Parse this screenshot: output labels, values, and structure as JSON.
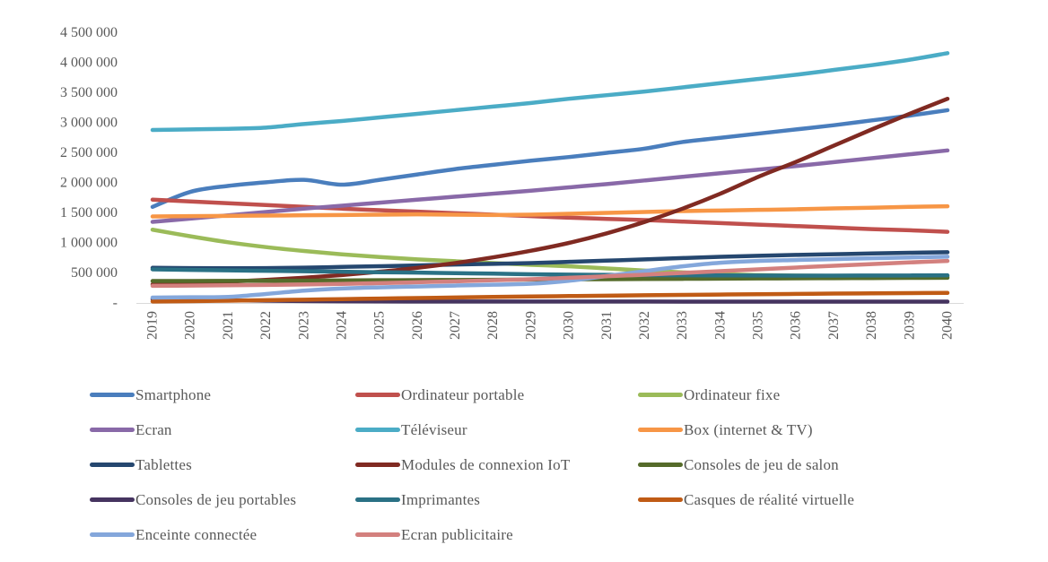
{
  "chart_data": {
    "type": "line",
    "title": "",
    "xlabel": "",
    "ylabel": "",
    "ylim": [
      0,
      4500000
    ],
    "grid": false,
    "legend_position": "bottom",
    "x_labels": [
      "2019",
      "2020",
      "2021",
      "2022",
      "2023",
      "2024",
      "2025",
      "2026",
      "2027",
      "2028",
      "2029",
      "2030",
      "2031",
      "2032",
      "2033",
      "2034",
      "2035",
      "2036",
      "2037",
      "2038",
      "2039",
      "2040"
    ],
    "y_ticks": [
      {
        "value": 0,
        "label": "-"
      },
      {
        "value": 500000,
        "label": "500 000"
      },
      {
        "value": 1000000,
        "label": "1 000 000"
      },
      {
        "value": 1500000,
        "label": "1 500 000"
      },
      {
        "value": 2000000,
        "label": "2 000 000"
      },
      {
        "value": 2500000,
        "label": "2 500 000"
      },
      {
        "value": 3000000,
        "label": "3 000 000"
      },
      {
        "value": 3500000,
        "label": "3 500 000"
      },
      {
        "value": 4000000,
        "label": "4 000 000"
      },
      {
        "value": 4500000,
        "label": "4 500 000"
      }
    ],
    "series": [
      {
        "name": "Smartphone",
        "color": "#4A7EBD",
        "values": [
          1600000,
          1850000,
          1950000,
          2010000,
          2050000,
          1970000,
          2050000,
          2140000,
          2230000,
          2300000,
          2370000,
          2430000,
          2500000,
          2570000,
          2680000,
          2750000,
          2820000,
          2890000,
          2960000,
          3040000,
          3120000,
          3210000
        ]
      },
      {
        "name": "Ordinateur portable",
        "color": "#C0504D",
        "values": [
          1720000,
          1690000,
          1660000,
          1630000,
          1600000,
          1570000,
          1545000,
          1520000,
          1495000,
          1470000,
          1445000,
          1420000,
          1400000,
          1380000,
          1355000,
          1330000,
          1305000,
          1280000,
          1255000,
          1230000,
          1210000,
          1185000
        ]
      },
      {
        "name": "Ordinateur fixe",
        "color": "#9BBB59",
        "values": [
          1220000,
          1110000,
          1010000,
          930000,
          865000,
          810000,
          765000,
          725000,
          695000,
          665000,
          635000,
          610000,
          575000,
          540000,
          510000,
          480000,
          465000,
          455000,
          450000,
          447000,
          444000,
          442000
        ]
      },
      {
        "name": "Ecran",
        "color": "#8969A8",
        "values": [
          1350000,
          1405000,
          1460000,
          1515000,
          1570000,
          1620000,
          1670000,
          1720000,
          1770000,
          1820000,
          1870000,
          1925000,
          1980000,
          2040000,
          2100000,
          2160000,
          2220000,
          2280000,
          2345000,
          2410000,
          2475000,
          2540000
        ]
      },
      {
        "name": "Téléviseur",
        "color": "#4BACC6",
        "values": [
          2880000,
          2890000,
          2900000,
          2920000,
          2980000,
          3030000,
          3090000,
          3150000,
          3210000,
          3270000,
          3330000,
          3400000,
          3460000,
          3520000,
          3590000,
          3660000,
          3730000,
          3800000,
          3880000,
          3960000,
          4050000,
          4160000
        ]
      },
      {
        "name": "Box (internet & TV)",
        "color": "#F79646",
        "values": [
          1440000,
          1445000,
          1450000,
          1455000,
          1460000,
          1465000,
          1470000,
          1475000,
          1470000,
          1465000,
          1470000,
          1485000,
          1500000,
          1515000,
          1530000,
          1540000,
          1550000,
          1560000,
          1575000,
          1585000,
          1600000,
          1610000
        ]
      },
      {
        "name": "Tablettes",
        "color": "#25476F",
        "values": [
          585000,
          580000,
          578000,
          580000,
          588000,
          600000,
          612000,
          625000,
          640000,
          652000,
          665000,
          685000,
          705000,
          725000,
          748000,
          768000,
          785000,
          800000,
          812000,
          824000,
          835000,
          845000
        ]
      },
      {
        "name": "Modules de connexion IoT",
        "color": "#802A22",
        "values": [
          310000,
          330000,
          355000,
          385000,
          420000,
          465000,
          520000,
          585000,
          665000,
          760000,
          870000,
          1000000,
          1160000,
          1350000,
          1570000,
          1820000,
          2100000,
          2350000,
          2620000,
          2890000,
          3150000,
          3400000
        ]
      },
      {
        "name": "Consoles de jeu de salon",
        "color": "#556B2A",
        "values": [
          365000,
          366000,
          368000,
          370000,
          372000,
          375000,
          378000,
          380000,
          383000,
          386000,
          390000,
          393000,
          396000,
          399000,
          402000,
          405000,
          408000,
          410000,
          413000,
          415000,
          418000,
          420000
        ]
      },
      {
        "name": "Consoles de jeu portables",
        "color": "#463460",
        "values": [
          65000,
          55000,
          45000,
          38000,
          32000,
          28000,
          26000,
          25000,
          25000,
          25000,
          25000,
          24000,
          24000,
          24000,
          23000,
          23000,
          23000,
          23000,
          22000,
          22000,
          22000,
          22000
        ]
      },
      {
        "name": "Imprimantes",
        "color": "#2A7185",
        "values": [
          560000,
          550000,
          542000,
          535000,
          528000,
          520000,
          512000,
          505000,
          496000,
          488000,
          478000,
          472000,
          468000,
          464000,
          461000,
          459000,
          457000,
          456000,
          456000,
          457000,
          458000,
          460000
        ]
      },
      {
        "name": "Casques de réalité virtuelle",
        "color": "#C05B15",
        "values": [
          25000,
          30000,
          38000,
          46000,
          55000,
          64000,
          73000,
          82000,
          91000,
          100000,
          108000,
          115000,
          122000,
          128000,
          134000,
          140000,
          146000,
          151000,
          156000,
          160000,
          164000,
          168000
        ]
      },
      {
        "name": "Enceinte connectée",
        "color": "#84A7DB",
        "values": [
          90000,
          95000,
          100000,
          150000,
          205000,
          240000,
          260000,
          275000,
          290000,
          305000,
          320000,
          370000,
          450000,
          530000,
          610000,
          670000,
          700000,
          715000,
          730000,
          745000,
          758000,
          770000
        ]
      },
      {
        "name": "Ecran publicitaire",
        "color": "#D3807E",
        "values": [
          285000,
          290000,
          295000,
          300000,
          308000,
          318000,
          330000,
          345000,
          360000,
          378000,
          395000,
          420000,
          445000,
          470000,
          500000,
          530000,
          560000,
          590000,
          620000,
          648000,
          675000,
          700000
        ]
      }
    ]
  },
  "style": {
    "axis_text_color": "#595959",
    "axis_line_color": "#D9D9D9",
    "background": "#FFFFFF"
  }
}
